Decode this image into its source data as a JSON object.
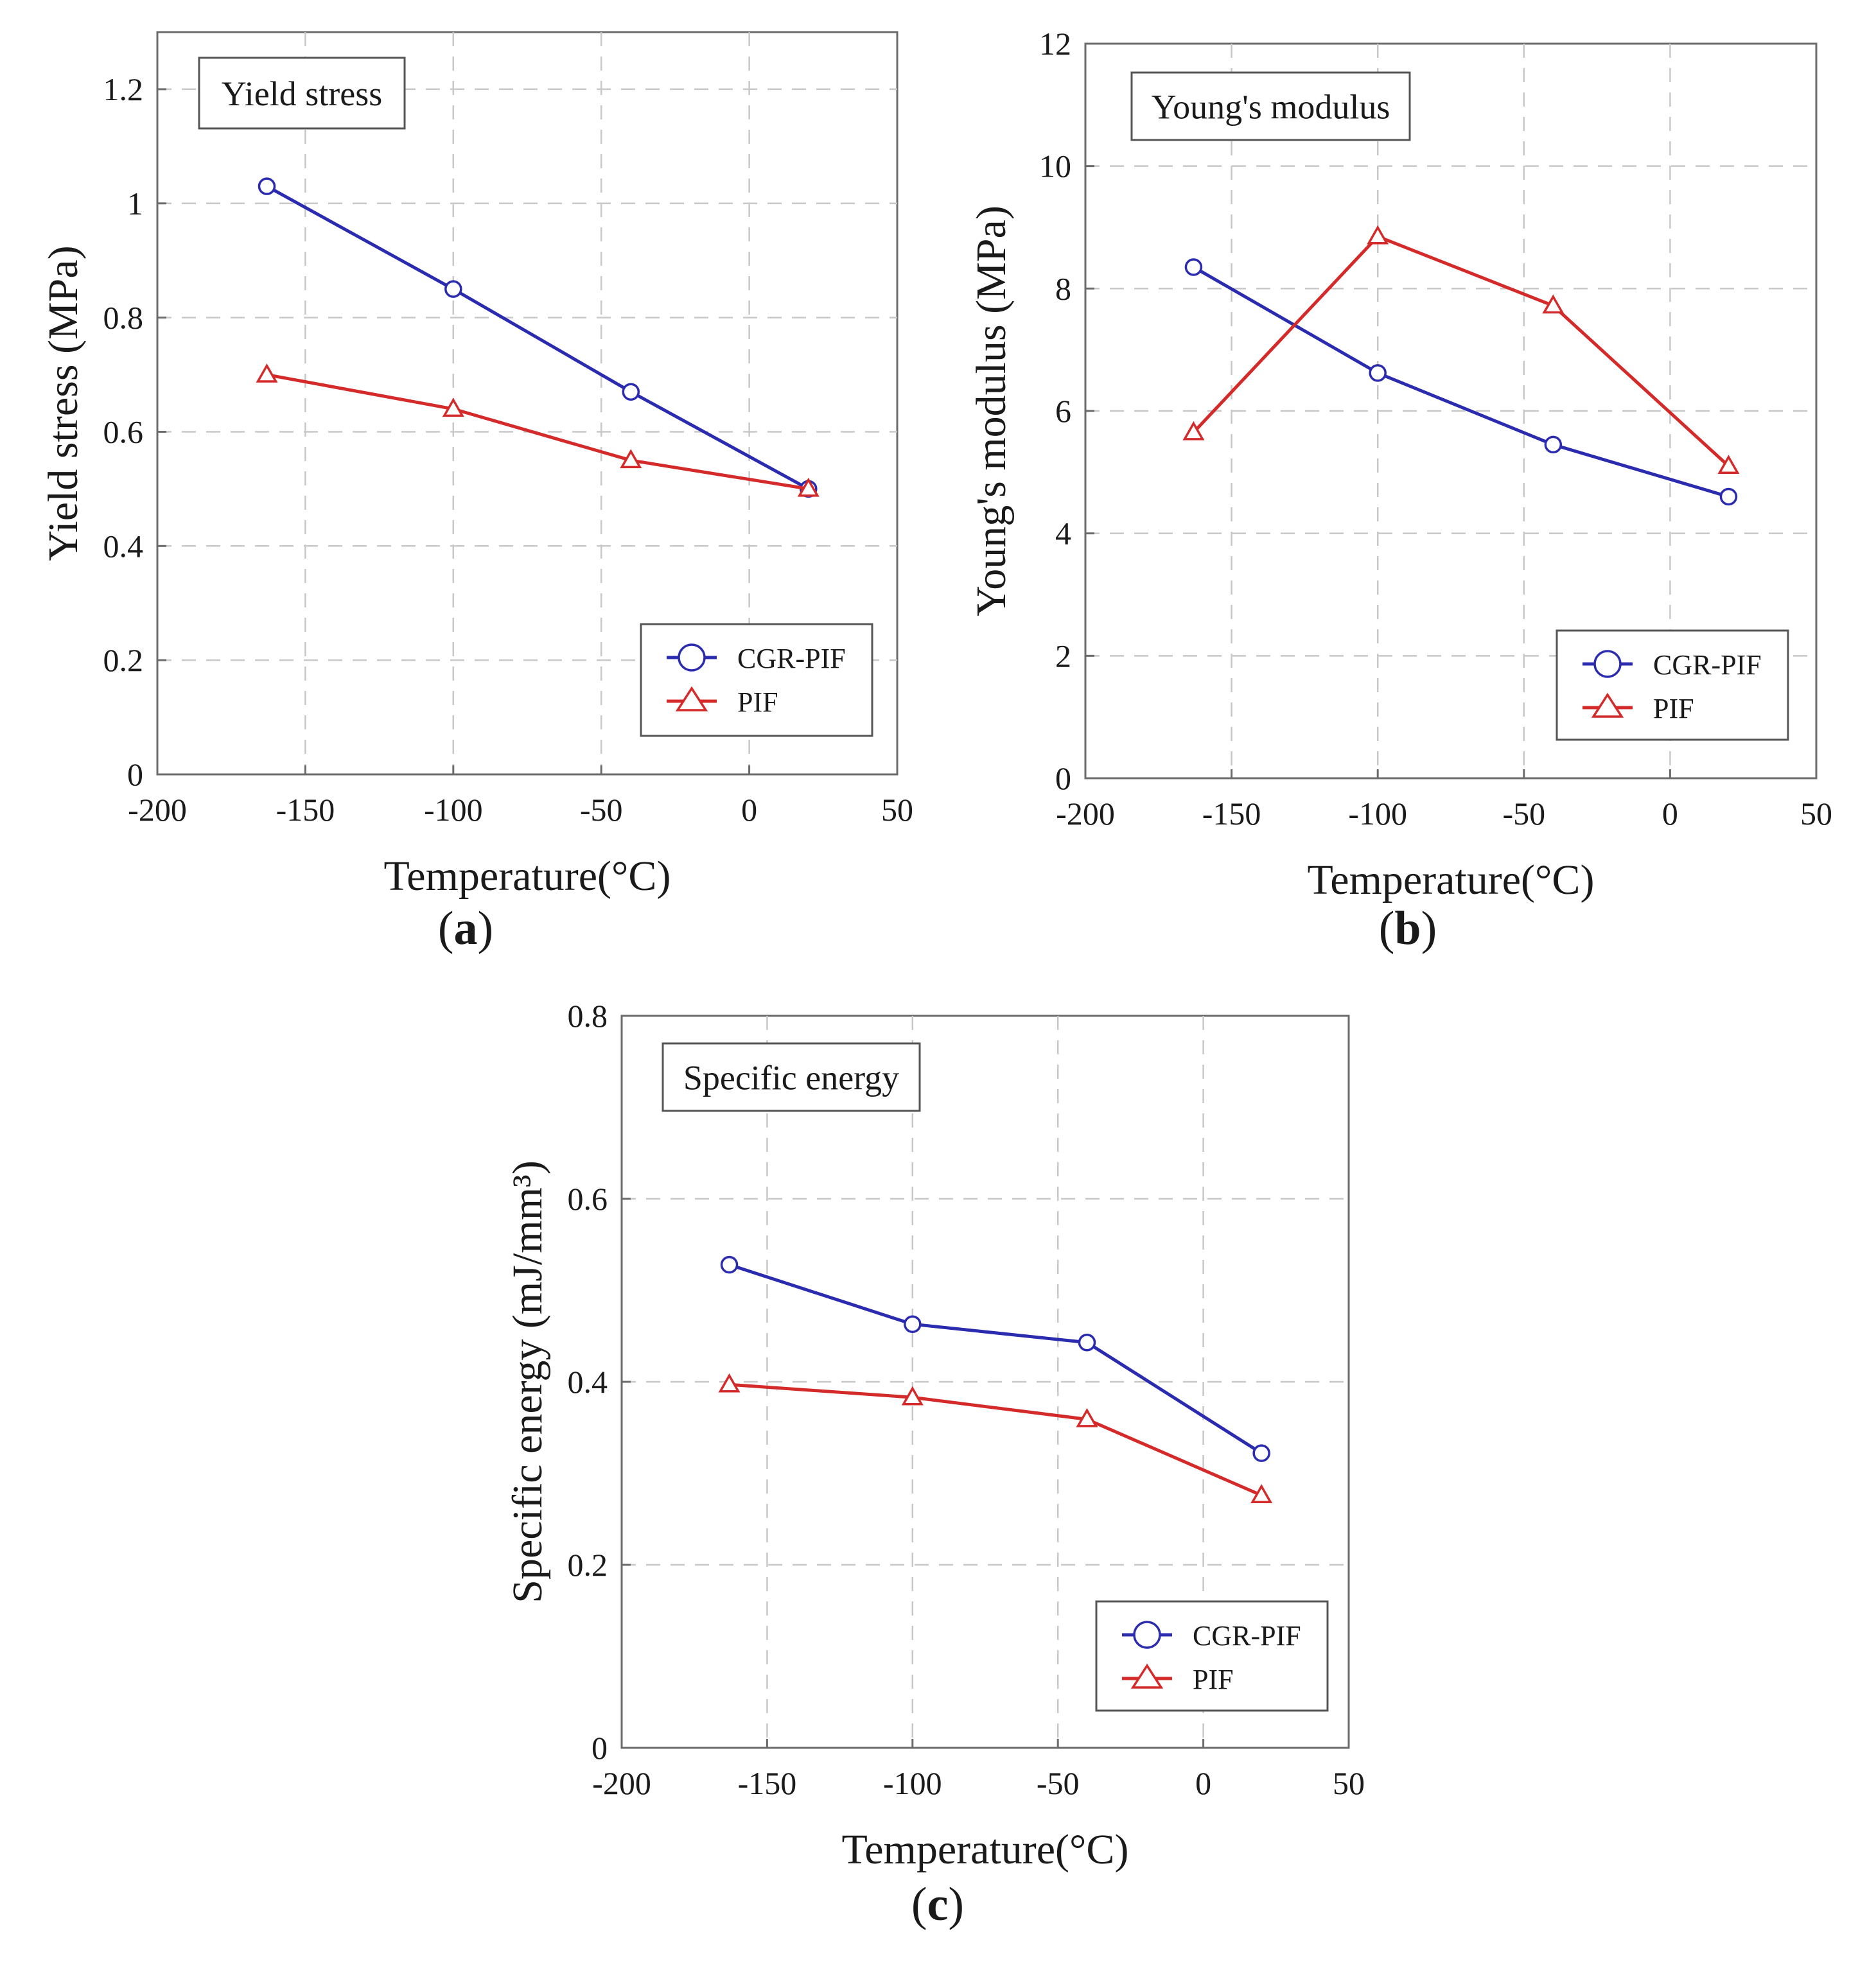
{
  "figure": {
    "panels": [
      "(a)",
      "(b)",
      "(c)"
    ],
    "legend_entries": [
      "CGR-PIF",
      "PIF"
    ],
    "colors": {
      "CGR-PIF": "#2b2bb0",
      "PIF": "#d42a2a",
      "grid": "#c8c8c8",
      "frame": "#6b6b6b"
    },
    "markers": {
      "CGR-PIF": "circle-marker",
      "PIF": "triangle-marker"
    }
  },
  "chart_data": [
    {
      "type": "line",
      "panel_label": "(a)",
      "title": "Yield stress",
      "xlabel": "Temperature(°C)",
      "ylabel": "Yield stress (MPa)",
      "xlim": [
        -200,
        50
      ],
      "ylim": [
        0,
        1.3
      ],
      "xticks": [
        -200,
        -150,
        -100,
        -50,
        0,
        50
      ],
      "yticks": [
        0,
        0.2,
        0.4,
        0.6,
        0.8,
        1,
        1.2
      ],
      "grid": true,
      "legend_position": "bottom-right",
      "x": [
        -163,
        -100,
        -40,
        20
      ],
      "series": [
        {
          "name": "CGR-PIF",
          "values": [
            1.03,
            0.85,
            0.67,
            0.5
          ]
        },
        {
          "name": "PIF",
          "values": [
            0.7,
            0.64,
            0.55,
            0.5
          ]
        }
      ]
    },
    {
      "type": "line",
      "panel_label": "(b)",
      "title": "Young's modulus",
      "xlabel": "Temperature(°C)",
      "ylabel": "Young's modulus (MPa)",
      "xlim": [
        -200,
        50
      ],
      "ylim": [
        0,
        12
      ],
      "xticks": [
        -200,
        -150,
        -100,
        -50,
        0,
        50
      ],
      "yticks": [
        0,
        2,
        4,
        6,
        8,
        10,
        12
      ],
      "grid": true,
      "legend_position": "bottom-right",
      "x": [
        -163,
        -100,
        -40,
        20
      ],
      "series": [
        {
          "name": "CGR-PIF",
          "values": [
            8.35,
            6.62,
            5.45,
            4.6
          ]
        },
        {
          "name": "PIF",
          "values": [
            5.65,
            8.85,
            7.72,
            5.1
          ]
        }
      ]
    },
    {
      "type": "line",
      "panel_label": "(c)",
      "title": "Specific energy",
      "xlabel": "Temperature(°C)",
      "ylabel": "Specific energy (mJ/mm³)",
      "xlim": [
        -200,
        50
      ],
      "ylim": [
        0,
        0.8
      ],
      "xticks": [
        -200,
        -150,
        -100,
        -50,
        0,
        50
      ],
      "yticks": [
        0,
        0.2,
        0.4,
        0.6,
        0.8
      ],
      "grid": true,
      "legend_position": "bottom-right",
      "x": [
        -163,
        -100,
        -40,
        20
      ],
      "series": [
        {
          "name": "CGR-PIF",
          "values": [
            0.528,
            0.463,
            0.443,
            0.322
          ]
        },
        {
          "name": "PIF",
          "values": [
            0.397,
            0.383,
            0.359,
            0.276
          ]
        }
      ]
    }
  ]
}
